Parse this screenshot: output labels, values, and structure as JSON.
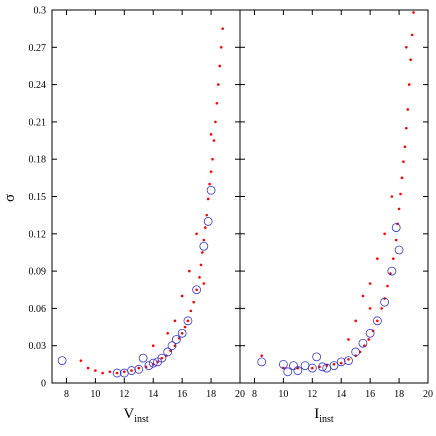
{
  "chart_data": [
    {
      "type": "scatter",
      "xlabel": "V",
      "xlabel_sub": "inst",
      "ylabel": "σ",
      "xlim": [
        7,
        20
      ],
      "ylim": [
        0,
        0.3
      ],
      "xticks": [
        8,
        10,
        12,
        14,
        16,
        18,
        20
      ],
      "yticks": [
        0,
        0.03,
        0.06,
        0.09,
        0.12,
        0.15,
        0.18,
        0.21,
        0.24,
        0.27,
        0.3
      ],
      "ytick_labels": true,
      "series": [
        {
          "color": "#ff0000",
          "marker": "dot",
          "x": [
            9,
            9.5,
            10,
            10.5,
            11,
            11.5,
            12,
            12.5,
            13,
            13.5,
            14,
            14.3,
            14.6,
            14.9,
            15.2,
            15.5,
            15.8,
            16,
            16.2,
            16.4,
            16.6,
            16.8,
            17,
            17.2,
            17.3,
            17.4,
            17.5,
            17.6,
            17.7,
            17.8,
            17.9,
            18,
            18.1,
            18.2,
            18.3,
            18.4,
            18.5,
            18.6,
            18.7,
            18.8,
            16,
            16.5,
            17,
            15.5,
            18,
            17.5,
            14,
            15
          ],
          "values": [
            0.018,
            0.012,
            0.01,
            0.008,
            0.009,
            0.008,
            0.009,
            0.01,
            0.012,
            0.013,
            0.015,
            0.017,
            0.02,
            0.022,
            0.026,
            0.03,
            0.036,
            0.04,
            0.045,
            0.05,
            0.058,
            0.065,
            0.075,
            0.085,
            0.095,
            0.105,
            0.115,
            0.125,
            0.135,
            0.148,
            0.16,
            0.17,
            0.18,
            0.195,
            0.21,
            0.225,
            0.24,
            0.255,
            0.27,
            0.285,
            0.07,
            0.09,
            0.12,
            0.05,
            0.2,
            0.08,
            0.03,
            0.04
          ]
        },
        {
          "color": "#3333cc",
          "marker": "ring",
          "x": [
            7.7,
            11.5,
            12,
            12.5,
            13,
            13.3,
            13.7,
            14,
            14.3,
            14.6,
            15,
            15.3,
            15.6,
            16,
            16.4,
            17,
            17.5,
            17.8,
            18
          ],
          "values": [
            0.018,
            0.008,
            0.008,
            0.01,
            0.011,
            0.02,
            0.014,
            0.016,
            0.017,
            0.02,
            0.025,
            0.03,
            0.035,
            0.04,
            0.05,
            0.075,
            0.11,
            0.13,
            0.155
          ]
        }
      ]
    },
    {
      "type": "scatter",
      "xlabel": "I",
      "xlabel_sub": "inst",
      "xlim": [
        7,
        20
      ],
      "ylim": [
        0,
        0.3
      ],
      "xticks": [
        8,
        10,
        12,
        14,
        16,
        18,
        20
      ],
      "yticks": [
        0,
        0.03,
        0.06,
        0.09,
        0.12,
        0.15,
        0.18,
        0.21,
        0.24,
        0.27,
        0.3
      ],
      "ytick_labels": false,
      "series": [
        {
          "color": "#ff0000",
          "marker": "dot",
          "x": [
            8.5,
            10,
            11,
            12,
            12.5,
            13,
            13.5,
            14,
            14.5,
            15,
            15.3,
            15.6,
            15.9,
            16.2,
            16.5,
            16.8,
            17,
            17.2,
            17.4,
            17.6,
            17.8,
            17.9,
            18,
            18.1,
            18.2,
            18.3,
            18.4,
            18.5,
            18.6,
            18.7,
            18.8,
            18.9,
            19,
            15,
            15.5,
            16,
            16.5,
            17,
            14.5,
            16,
            17.5,
            18.5
          ],
          "values": [
            0.022,
            0.012,
            0.012,
            0.012,
            0.013,
            0.014,
            0.015,
            0.016,
            0.019,
            0.022,
            0.025,
            0.03,
            0.035,
            0.042,
            0.05,
            0.06,
            0.068,
            0.078,
            0.088,
            0.1,
            0.115,
            0.128,
            0.14,
            0.152,
            0.165,
            0.178,
            0.19,
            0.205,
            0.22,
            0.24,
            0.26,
            0.28,
            0.298,
            0.05,
            0.07,
            0.08,
            0.1,
            0.12,
            0.035,
            0.06,
            0.15,
            0.27
          ]
        },
        {
          "color": "#3333cc",
          "marker": "ring",
          "x": [
            8.5,
            10,
            10.3,
            10.7,
            11,
            11.5,
            12,
            12.3,
            12.7,
            13,
            13.5,
            14,
            14.5,
            15,
            15.5,
            16,
            16.5,
            17,
            17.5,
            18,
            17.8
          ],
          "values": [
            0.017,
            0.015,
            0.009,
            0.014,
            0.01,
            0.014,
            0.012,
            0.021,
            0.013,
            0.012,
            0.014,
            0.017,
            0.018,
            0.025,
            0.032,
            0.04,
            0.05,
            0.065,
            0.09,
            0.107,
            0.125
          ]
        }
      ]
    }
  ]
}
